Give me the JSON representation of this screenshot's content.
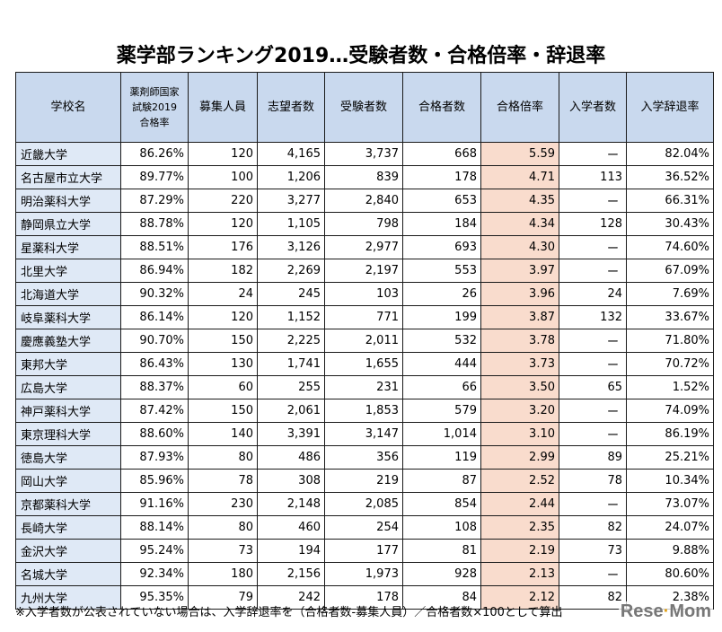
{
  "title": "薬学部ランキング2019…受験者数・合格倍率・辞退率",
  "headers": {
    "school": "学校名",
    "pass_rate_lines": [
      "薬剤師国家",
      "試験2019",
      "合格率"
    ],
    "recruit": "募集人員",
    "applicants": "志望者数",
    "examinees": "受験者数",
    "passers": "合格者数",
    "ratio": "合格倍率",
    "enrolled": "入学者数",
    "decline": "入学辞退率"
  },
  "rows": [
    {
      "name": "近畿大学",
      "pass_rate": "86.26%",
      "recruit": "120",
      "applicants": "4,165",
      "examinees": "3,737",
      "passers": "668",
      "ratio": "5.59",
      "enrolled": "ー",
      "decline": "82.04%"
    },
    {
      "name": "名古屋市立大学",
      "pass_rate": "89.77%",
      "recruit": "100",
      "applicants": "1,206",
      "examinees": "839",
      "passers": "178",
      "ratio": "4.71",
      "enrolled": "113",
      "decline": "36.52%"
    },
    {
      "name": "明治薬科大学",
      "pass_rate": "87.29%",
      "recruit": "220",
      "applicants": "3,277",
      "examinees": "2,840",
      "passers": "653",
      "ratio": "4.35",
      "enrolled": "ー",
      "decline": "66.31%"
    },
    {
      "name": "静岡県立大学",
      "pass_rate": "88.78%",
      "recruit": "120",
      "applicants": "1,105",
      "examinees": "798",
      "passers": "184",
      "ratio": "4.34",
      "enrolled": "128",
      "decline": "30.43%"
    },
    {
      "name": "星薬科大学",
      "pass_rate": "88.51%",
      "recruit": "176",
      "applicants": "3,126",
      "examinees": "2,977",
      "passers": "693",
      "ratio": "4.30",
      "enrolled": "ー",
      "decline": "74.60%"
    },
    {
      "name": "北里大学",
      "pass_rate": "86.94%",
      "recruit": "182",
      "applicants": "2,269",
      "examinees": "2,197",
      "passers": "553",
      "ratio": "3.97",
      "enrolled": "ー",
      "decline": "67.09%"
    },
    {
      "name": "北海道大学",
      "pass_rate": "90.32%",
      "recruit": "24",
      "applicants": "245",
      "examinees": "103",
      "passers": "26",
      "ratio": "3.96",
      "enrolled": "24",
      "decline": "7.69%"
    },
    {
      "name": "岐阜薬科大学",
      "pass_rate": "86.14%",
      "recruit": "120",
      "applicants": "1,152",
      "examinees": "771",
      "passers": "199",
      "ratio": "3.87",
      "enrolled": "132",
      "decline": "33.67%"
    },
    {
      "name": "慶應義塾大学",
      "pass_rate": "90.70%",
      "recruit": "150",
      "applicants": "2,225",
      "examinees": "2,011",
      "passers": "532",
      "ratio": "3.78",
      "enrolled": "ー",
      "decline": "71.80%"
    },
    {
      "name": "東邦大学",
      "pass_rate": "86.43%",
      "recruit": "130",
      "applicants": "1,741",
      "examinees": "1,655",
      "passers": "444",
      "ratio": "3.73",
      "enrolled": "ー",
      "decline": "70.72%"
    },
    {
      "name": "広島大学",
      "pass_rate": "88.37%",
      "recruit": "60",
      "applicants": "255",
      "examinees": "231",
      "passers": "66",
      "ratio": "3.50",
      "enrolled": "65",
      "decline": "1.52%"
    },
    {
      "name": "神戸薬科大学",
      "pass_rate": "87.42%",
      "recruit": "150",
      "applicants": "2,061",
      "examinees": "1,853",
      "passers": "579",
      "ratio": "3.20",
      "enrolled": "ー",
      "decline": "74.09%"
    },
    {
      "name": "東京理科大学",
      "pass_rate": "88.60%",
      "recruit": "140",
      "applicants": "3,391",
      "examinees": "3,147",
      "passers": "1,014",
      "ratio": "3.10",
      "enrolled": "ー",
      "decline": "86.19%"
    },
    {
      "name": "徳島大学",
      "pass_rate": "87.93%",
      "recruit": "80",
      "applicants": "486",
      "examinees": "356",
      "passers": "119",
      "ratio": "2.99",
      "enrolled": "89",
      "decline": "25.21%"
    },
    {
      "name": "岡山大学",
      "pass_rate": "85.96%",
      "recruit": "78",
      "applicants": "308",
      "examinees": "219",
      "passers": "87",
      "ratio": "2.52",
      "enrolled": "78",
      "decline": "10.34%"
    },
    {
      "name": "京都薬科大学",
      "pass_rate": "91.16%",
      "recruit": "230",
      "applicants": "2,148",
      "examinees": "2,085",
      "passers": "854",
      "ratio": "2.44",
      "enrolled": "ー",
      "decline": "73.07%"
    },
    {
      "name": "長崎大学",
      "pass_rate": "88.14%",
      "recruit": "80",
      "applicants": "460",
      "examinees": "254",
      "passers": "108",
      "ratio": "2.35",
      "enrolled": "82",
      "decline": "24.07%"
    },
    {
      "name": "金沢大学",
      "pass_rate": "95.24%",
      "recruit": "73",
      "applicants": "194",
      "examinees": "177",
      "passers": "81",
      "ratio": "2.19",
      "enrolled": "73",
      "decline": "9.88%"
    },
    {
      "name": "名城大学",
      "pass_rate": "92.34%",
      "recruit": "180",
      "applicants": "2,156",
      "examinees": "1,973",
      "passers": "928",
      "ratio": "2.13",
      "enrolled": "ー",
      "decline": "80.60%"
    },
    {
      "name": "九州大学",
      "pass_rate": "95.35%",
      "recruit": "79",
      "applicants": "242",
      "examinees": "178",
      "passers": "84",
      "ratio": "2.12",
      "enrolled": "82",
      "decline": "2.38%"
    }
  ],
  "footer": "※入学者数が公表されていない場合は、入学辞退率を（合格者数-募集人員）／合格者数×100として算出",
  "logo": {
    "part1": "Rese",
    "part2": "Mom"
  },
  "colors": {
    "header_bg": "#c9d9ee",
    "name_bg": "#dfe9f6",
    "highlight_bg": "#f9dccd"
  }
}
